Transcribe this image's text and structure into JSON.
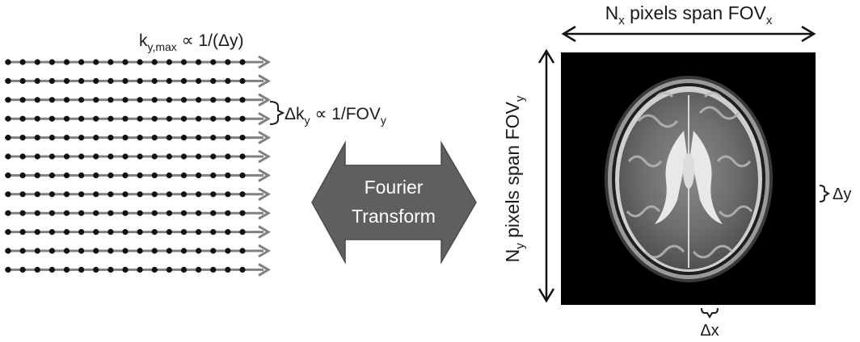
{
  "kspace": {
    "lines": 12,
    "samples_per_line": 17,
    "ky_max_label": {
      "base": "k",
      "sub": "y,max",
      "rest": " ∝ 1/(Δy)"
    },
    "delta_ky_label": {
      "base": "Δk",
      "sub": "y",
      "rest": " ∝ 1/FOV",
      "sub2": "y"
    },
    "line_color": "#808080",
    "dot_color": "#111111"
  },
  "transform_arrow": {
    "line1": "Fourier",
    "line2": "Transform",
    "fill": "#5f5f5f"
  },
  "image": {
    "top_label": {
      "base": "N",
      "sub": "x",
      "mid": " pixels span FOV",
      "sub2": "x"
    },
    "side_label": {
      "base": "N",
      "sub": "y",
      "mid": "  pixels span FOV",
      "sub2": "y"
    },
    "delta_y": "Δy",
    "delta_x": "Δx",
    "background": "#000000",
    "brain_icon": "axial-mri-brain-slice"
  }
}
